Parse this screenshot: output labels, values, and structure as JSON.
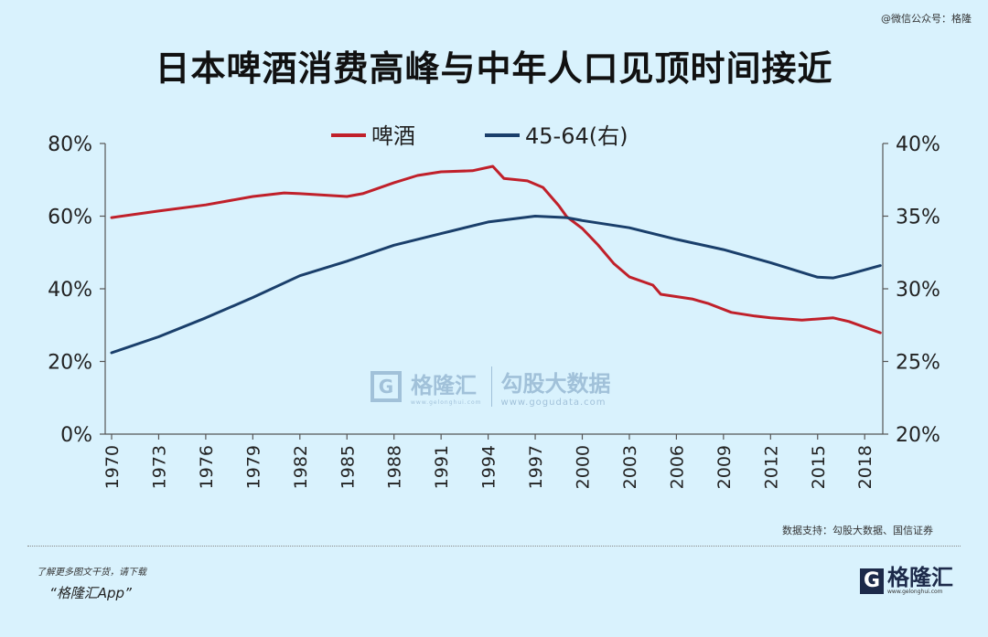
{
  "watermark_top": "@微信公众号：格隆",
  "chart_data": {
    "type": "line",
    "title": "日本啤酒消费高峰与中年人口见顶时间接近",
    "x_ticks": [
      "1970",
      "1973",
      "1976",
      "1979",
      "1982",
      "1985",
      "1988",
      "1991",
      "1994",
      "1997",
      "2000",
      "2003",
      "2006",
      "2009",
      "2012",
      "2015",
      "2018"
    ],
    "xlim": [
      1970,
      2019
    ],
    "y_left": {
      "ticks": [
        "0%",
        "20%",
        "40%",
        "60%",
        "80%"
      ],
      "range": [
        0,
        80
      ]
    },
    "y_right": {
      "ticks": [
        "20%",
        "25%",
        "30%",
        "35%",
        "40%"
      ],
      "range": [
        20,
        40
      ]
    },
    "legend_position": "top-center",
    "grid": false,
    "series": [
      {
        "name": "啤酒",
        "axis": "left",
        "color": "#c0202a",
        "x": [
          1970,
          1973,
          1976,
          1979,
          1981,
          1982,
          1985,
          1986,
          1988,
          1989.5,
          1991,
          1993,
          1994.3,
          1995,
          1996.5,
          1997.5,
          1998.5,
          1999,
          2000,
          2001,
          2002,
          2003,
          2004.5,
          2005,
          2007,
          2008,
          2009.5,
          2011,
          2012,
          2014,
          2016,
          2017,
          2019
        ],
        "y": [
          59.6,
          61.4,
          63.1,
          65.4,
          66.4,
          66.2,
          65.4,
          66.2,
          69.2,
          71.2,
          72.2,
          72.5,
          73.7,
          70.4,
          69.7,
          67.9,
          62.9,
          59.9,
          56.6,
          52.1,
          47,
          43.3,
          41,
          38.5,
          37.2,
          36,
          33.5,
          32.5,
          32,
          31.4,
          32,
          31,
          27.9
        ]
      },
      {
        "name": "45-64(右)",
        "axis": "right",
        "color": "#1a3f6b",
        "x": [
          1970,
          1973,
          1976,
          1979,
          1982,
          1985,
          1988,
          1991,
          1994,
          1997,
          1999,
          2000,
          2003,
          2006,
          2009,
          2012,
          2015,
          2016,
          2017,
          2019
        ],
        "y": [
          25.6,
          26.7,
          28,
          29.4,
          30.9,
          31.9,
          33,
          33.8,
          34.6,
          35.0,
          34.9,
          34.7,
          34.2,
          33.4,
          32.7,
          31.8,
          30.8,
          30.75,
          31,
          31.6
        ]
      }
    ]
  },
  "center_watermark": {
    "brand": "格隆汇",
    "brand_url": "www.gelonghui.com",
    "partner": "勾股大数据",
    "partner_url": "www.gogudata.com"
  },
  "source": "数据支持：勾股大数据、国信证券",
  "promo": {
    "line1": "了解更多图文干货，请下载",
    "line2": "“格隆汇App”"
  },
  "logo": {
    "mark": "G",
    "text": "格隆汇",
    "url": "www.gelonghui.com"
  }
}
